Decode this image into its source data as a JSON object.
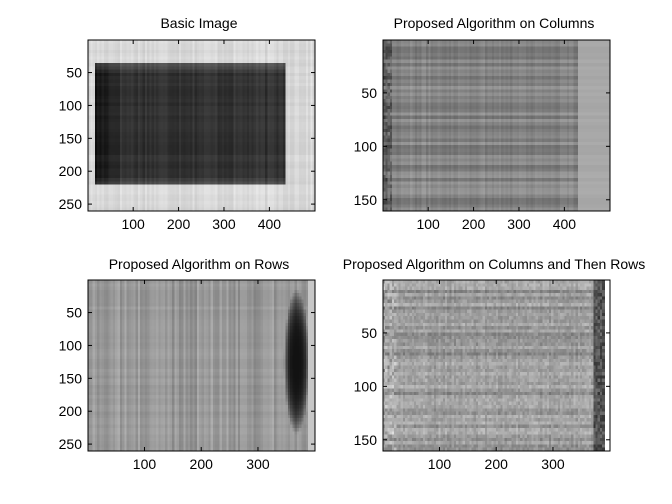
{
  "figure": {
    "background": "#ffffff",
    "axis_color": "#000000"
  },
  "chart_data": [
    {
      "type": "heatmap",
      "title": "Basic Image",
      "xlabel": "",
      "ylabel": "",
      "colormap": "gray",
      "xlim": [
        0.5,
        500.5
      ],
      "ylim": [
        0.5,
        260.5
      ],
      "y_reversed": true,
      "xticks": [
        100,
        200,
        300,
        400
      ],
      "yticks": [
        50,
        100,
        150,
        200,
        250
      ],
      "tick_labels_x": [
        "100",
        "200",
        "300",
        "400"
      ],
      "tick_labels_y": [
        "50",
        "100",
        "150",
        "200",
        "250"
      ],
      "image_extent_x": [
        0.5,
        500.5
      ],
      "image_extent_y": [
        0.5,
        260.5
      ],
      "pattern": "block",
      "background_level": 0.85,
      "dark_block": {
        "x": [
          15,
          435
        ],
        "y": [
          38,
          220
        ],
        "level": 0.2,
        "edge_level": 0.07
      },
      "streak_strength": 0.04,
      "rows_noise": 0.02
    },
    {
      "type": "heatmap",
      "title": "Proposed Algorithm on Columns",
      "xlabel": "",
      "ylabel": "",
      "colormap": "gray",
      "xlim": [
        0.5,
        500.5
      ],
      "ylim": [
        0.5,
        160.5
      ],
      "y_reversed": true,
      "xticks": [
        100,
        200,
        300,
        400
      ],
      "yticks": [
        50,
        100,
        150
      ],
      "tick_labels_x": [
        "100",
        "200",
        "300",
        "400"
      ],
      "tick_labels_y": [
        "50",
        "100",
        "150"
      ],
      "image_extent_x": [
        0.5,
        500.5
      ],
      "image_extent_y": [
        0.5,
        160.5
      ],
      "pattern": "horizontal-banding",
      "base_level": 0.52,
      "left_dark_columns": 22,
      "right_band": {
        "x": [
          432,
          500
        ],
        "level": 0.66
      },
      "streak_strength": 0.08,
      "rows_noise": 0.07
    },
    {
      "type": "heatmap",
      "title": "Proposed Algorithm on Rows",
      "xlabel": "",
      "ylabel": "",
      "colormap": "gray",
      "xlim": [
        0.5,
        400.5
      ],
      "ylim": [
        0.5,
        260.5
      ],
      "y_reversed": true,
      "xticks": [
        100,
        200,
        300
      ],
      "yticks": [
        50,
        100,
        150,
        200,
        250
      ],
      "tick_labels_x": [
        "100",
        "200",
        "300"
      ],
      "tick_labels_y": [
        "50",
        "100",
        "150",
        "200",
        "250"
      ],
      "image_extent_x": [
        0.5,
        400.5
      ],
      "image_extent_y": [
        0.5,
        260.5
      ],
      "pattern": "vertical-striping",
      "base_level": 0.6,
      "dark_blob": {
        "cx": 368,
        "cy": 125,
        "rx": 22,
        "ry": 110,
        "level": 0.07
      },
      "right_edge_level": 0.78,
      "streak_strength": 0.07,
      "rows_noise": 0.02
    },
    {
      "type": "heatmap",
      "title": "Proposed Algorithm on Columns and Then Rows",
      "xlabel": "",
      "ylabel": "",
      "colormap": "gray",
      "xlim": [
        0.5,
        400.5
      ],
      "ylim": [
        0.5,
        160.5
      ],
      "y_reversed": true,
      "xticks": [
        100,
        200,
        300
      ],
      "yticks": [
        50,
        100,
        150
      ],
      "tick_labels_x": [
        "100",
        "200",
        "300"
      ],
      "tick_labels_y": [
        "50",
        "100",
        "150"
      ],
      "image_extent_x": [
        0.5,
        390.5
      ],
      "image_extent_y": [
        0.5,
        160.5
      ],
      "pattern": "texture",
      "base_level": 0.6,
      "left_bright_columns": 22,
      "right_edge": {
        "x": [
          372,
          390
        ],
        "level": 0.32
      },
      "streak_strength": 0.05,
      "rows_noise": 0.08
    }
  ]
}
